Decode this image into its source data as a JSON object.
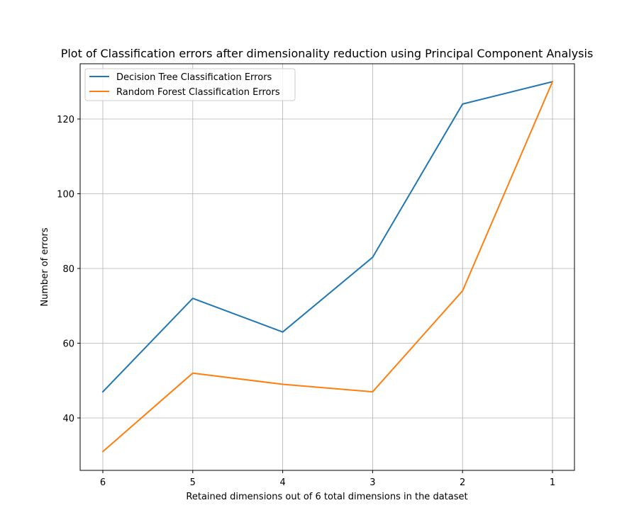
{
  "chart_data": {
    "type": "line",
    "title": "Plot of Classification errors after dimensionality reduction using Principal Component Analysis",
    "xlabel": "Retained dimensions out of 6 total dimensions in the dataset",
    "ylabel": "Number of errors",
    "categories": [
      "6",
      "5",
      "4",
      "3",
      "2",
      "1"
    ],
    "series": [
      {
        "name": "Decision Tree Classification Errors",
        "color": "#1f77b4",
        "values": [
          47,
          72,
          63,
          83,
          124,
          130
        ]
      },
      {
        "name": "Random Forest Classification Errors",
        "color": "#ff7f0e",
        "values": [
          31,
          52,
          49,
          47,
          74,
          130
        ]
      }
    ],
    "yticks": [
      40,
      60,
      80,
      100,
      120
    ],
    "ylim": [
      25,
      135
    ],
    "grid": true,
    "legend_position": "upper-left"
  }
}
